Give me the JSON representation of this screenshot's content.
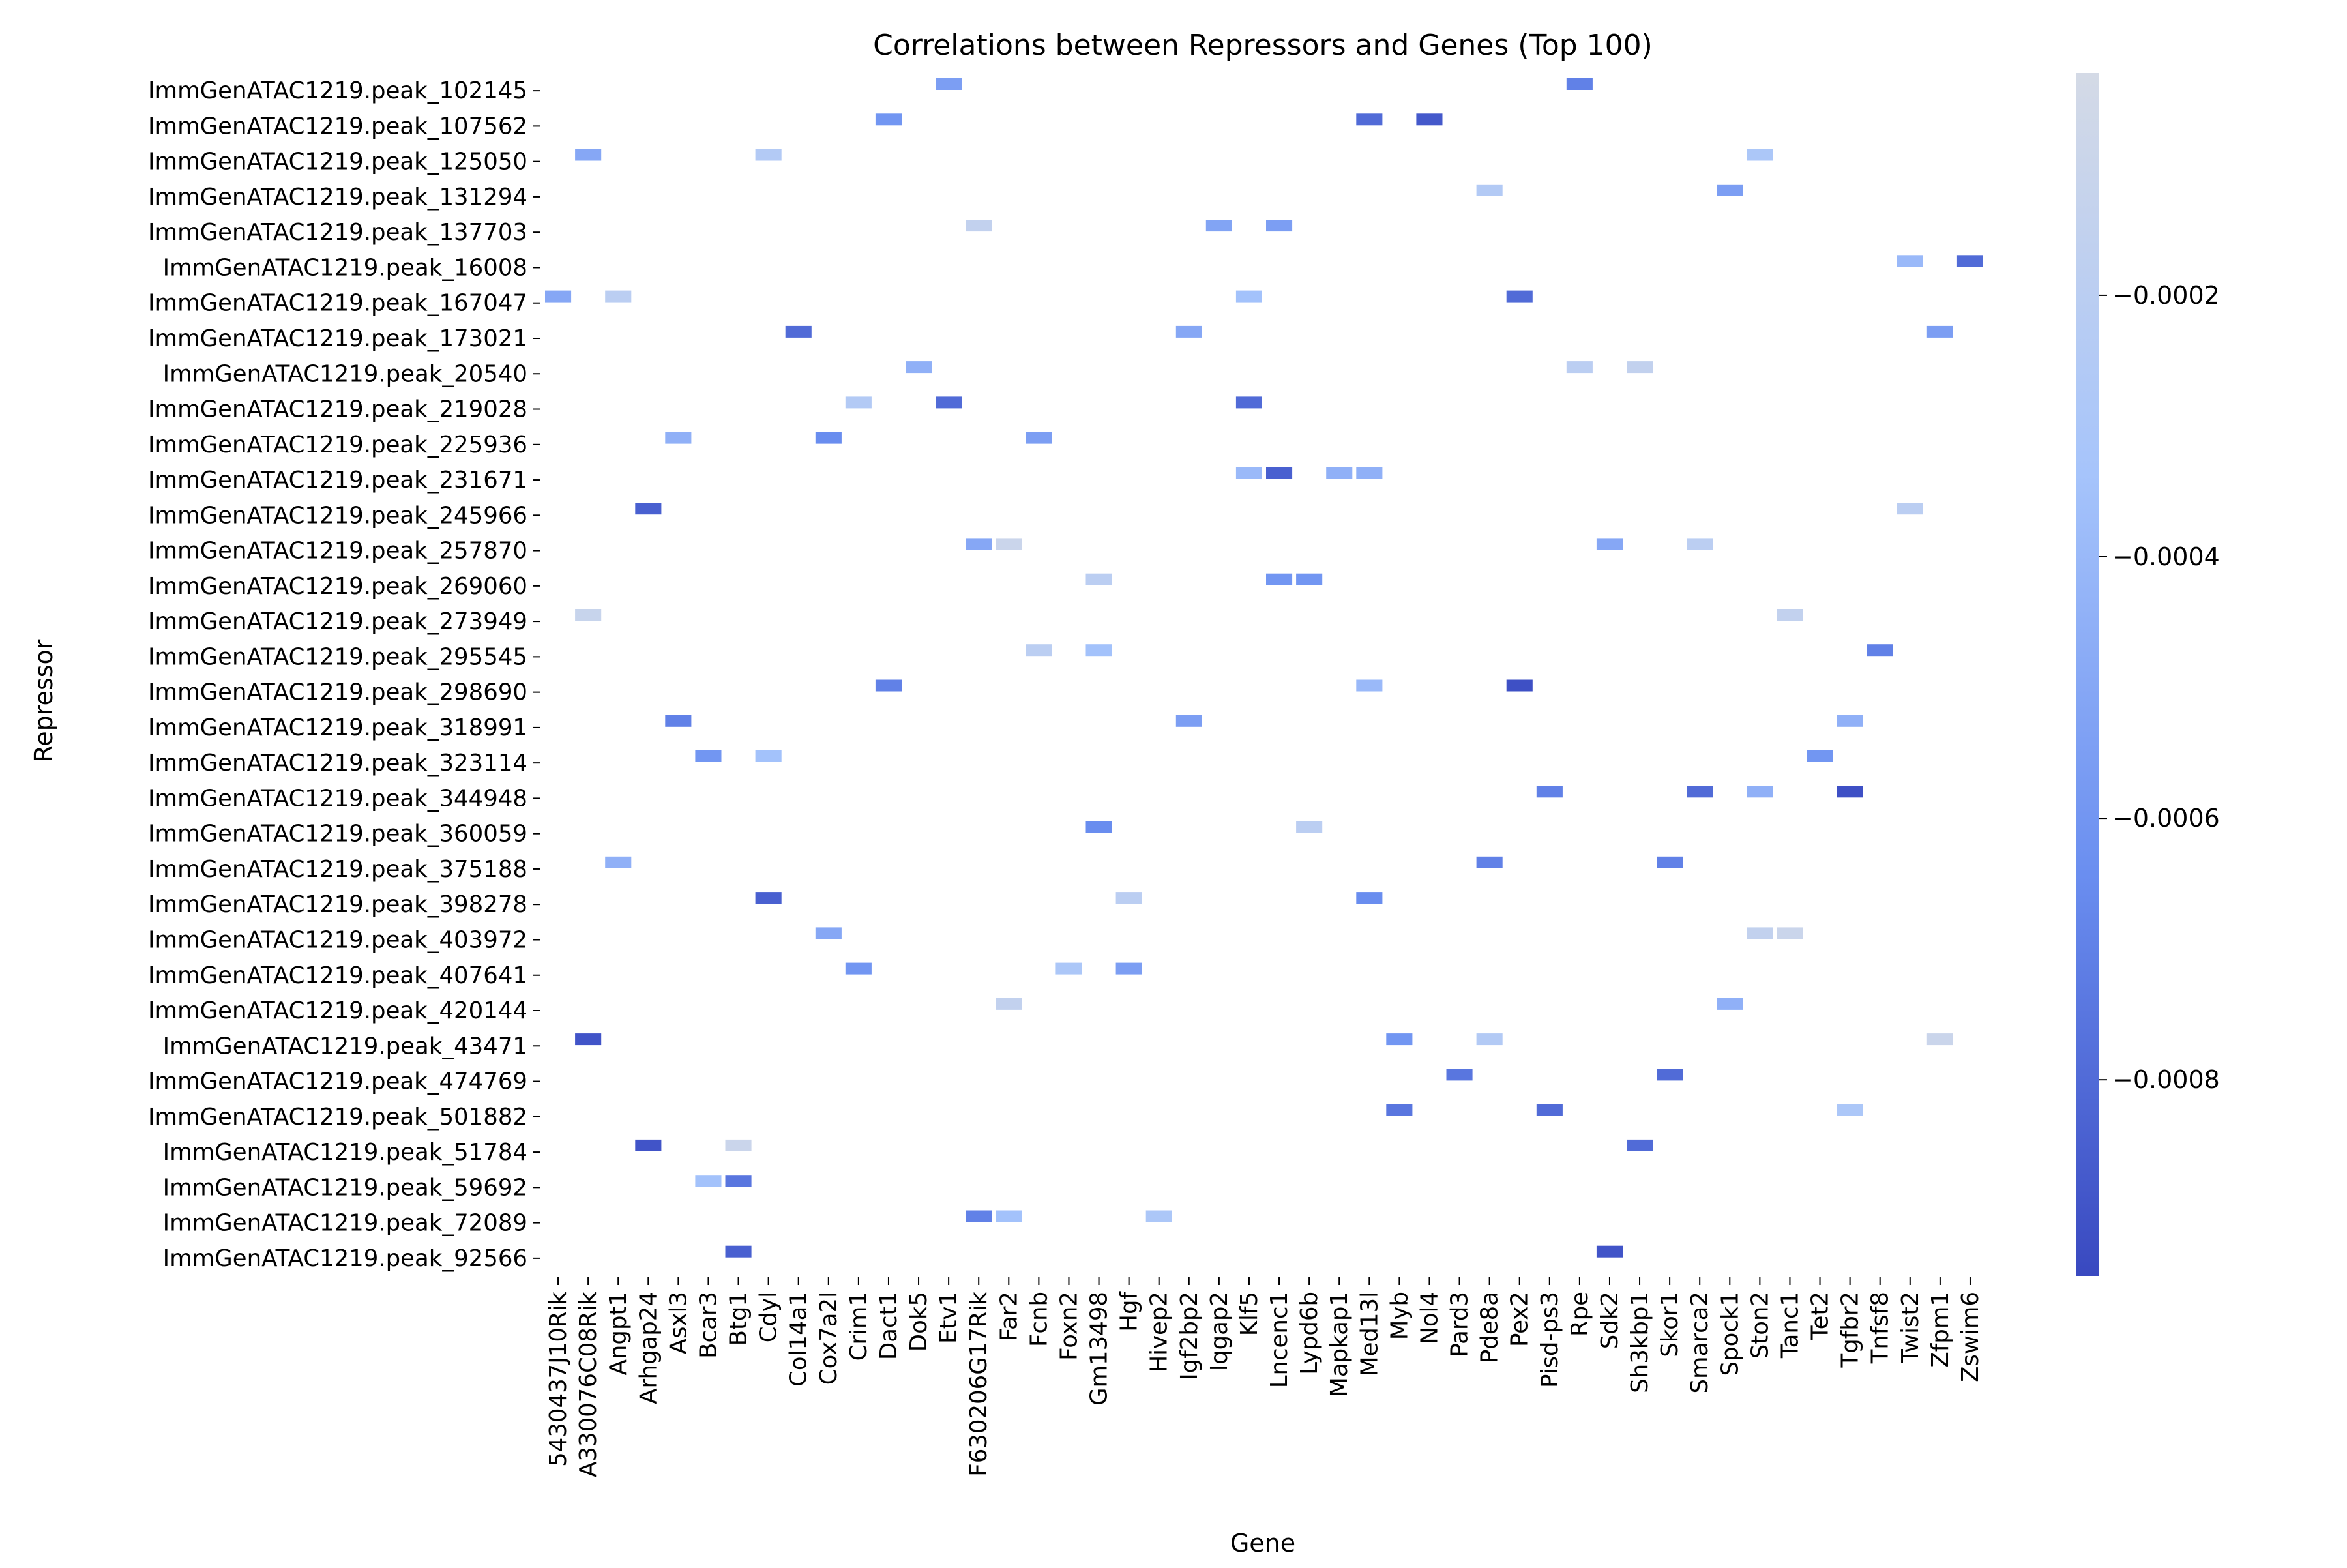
{
  "chart_data": {
    "type": "heatmap",
    "title": "Correlations between Repressors and Genes (Top 100)",
    "xlabel": "Gene",
    "ylabel": "Repressor",
    "x_categories": [
      "5430437J10Rik",
      "A330076C08Rik",
      "Angpt1",
      "Arhgap24",
      "Asxl3",
      "Bcar3",
      "Btg1",
      "Cdyl",
      "Col14a1",
      "Cox7a2l",
      "Crim1",
      "Dact1",
      "Dok5",
      "Etv1",
      "F630206G17Rik",
      "Far2",
      "Fcnb",
      "Foxn2",
      "Gm13498",
      "Hgf",
      "Hivep2",
      "Igf2bp2",
      "Iqgap2",
      "Klf5",
      "Lncenc1",
      "Lypd6b",
      "Mapkap1",
      "Med13l",
      "Myb",
      "Nol4",
      "Pard3",
      "Pde8a",
      "Pex2",
      "Pisd-ps3",
      "Rpe",
      "Sdk2",
      "Sh3kbp1",
      "Skor1",
      "Smarca2",
      "Spock1",
      "Ston2",
      "Tanc1",
      "Tet2",
      "Tgfbr2",
      "Tnfsf8",
      "Twist2",
      "Zfpm1",
      "Zswim6"
    ],
    "y_categories": [
      "ImmGenATAC1219.peak_102145",
      "ImmGenATAC1219.peak_107562",
      "ImmGenATAC1219.peak_125050",
      "ImmGenATAC1219.peak_131294",
      "ImmGenATAC1219.peak_137703",
      "ImmGenATAC1219.peak_16008",
      "ImmGenATAC1219.peak_167047",
      "ImmGenATAC1219.peak_173021",
      "ImmGenATAC1219.peak_20540",
      "ImmGenATAC1219.peak_219028",
      "ImmGenATAC1219.peak_225936",
      "ImmGenATAC1219.peak_231671",
      "ImmGenATAC1219.peak_245966",
      "ImmGenATAC1219.peak_257870",
      "ImmGenATAC1219.peak_269060",
      "ImmGenATAC1219.peak_273949",
      "ImmGenATAC1219.peak_295545",
      "ImmGenATAC1219.peak_298690",
      "ImmGenATAC1219.peak_318991",
      "ImmGenATAC1219.peak_323114",
      "ImmGenATAC1219.peak_344948",
      "ImmGenATAC1219.peak_360059",
      "ImmGenATAC1219.peak_375188",
      "ImmGenATAC1219.peak_398278",
      "ImmGenATAC1219.peak_403972",
      "ImmGenATAC1219.peak_407641",
      "ImmGenATAC1219.peak_420144",
      "ImmGenATAC1219.peak_43471",
      "ImmGenATAC1219.peak_474769",
      "ImmGenATAC1219.peak_501882",
      "ImmGenATAC1219.peak_51784",
      "ImmGenATAC1219.peak_59692",
      "ImmGenATAC1219.peak_72089",
      "ImmGenATAC1219.peak_92566"
    ],
    "cells": [
      {
        "gene": "Etv1",
        "repressor": "ImmGenATAC1219.peak_102145",
        "value": -0.00055
      },
      {
        "gene": "Rpe",
        "repressor": "ImmGenATAC1219.peak_102145",
        "value": -0.0007
      },
      {
        "gene": "Dact1",
        "repressor": "ImmGenATAC1219.peak_107562",
        "value": -0.0006
      },
      {
        "gene": "Med13l",
        "repressor": "ImmGenATAC1219.peak_107562",
        "value": -0.0008
      },
      {
        "gene": "Nol4",
        "repressor": "ImmGenATAC1219.peak_107562",
        "value": -0.00088
      },
      {
        "gene": "A330076C08Rik",
        "repressor": "ImmGenATAC1219.peak_125050",
        "value": -0.0005
      },
      {
        "gene": "Cdyl",
        "repressor": "ImmGenATAC1219.peak_125050",
        "value": -0.00025
      },
      {
        "gene": "Ston2",
        "repressor": "ImmGenATAC1219.peak_125050",
        "value": -0.0003
      },
      {
        "gene": "Pde8a",
        "repressor": "ImmGenATAC1219.peak_131294",
        "value": -0.00025
      },
      {
        "gene": "Spock1",
        "repressor": "ImmGenATAC1219.peak_131294",
        "value": -0.00055
      },
      {
        "gene": "F630206G17Rik",
        "repressor": "ImmGenATAC1219.peak_137703",
        "value": -0.00015
      },
      {
        "gene": "Iqgap2",
        "repressor": "ImmGenATAC1219.peak_137703",
        "value": -0.00052
      },
      {
        "gene": "Lncenc1",
        "repressor": "ImmGenATAC1219.peak_137703",
        "value": -0.00055
      },
      {
        "gene": "Zswim6",
        "repressor": "ImmGenATAC1219.peak_16008",
        "value": -0.0008
      },
      {
        "gene": "Twist2",
        "repressor": "ImmGenATAC1219.peak_16008",
        "value": -0.0004
      },
      {
        "gene": "5430437J10Rik",
        "repressor": "ImmGenATAC1219.peak_167047",
        "value": -0.0005
      },
      {
        "gene": "Klf5",
        "repressor": "ImmGenATAC1219.peak_167047",
        "value": -0.00035
      },
      {
        "gene": "Pex2",
        "repressor": "ImmGenATAC1219.peak_167047",
        "value": -0.0008
      },
      {
        "gene": "Angpt1",
        "repressor": "ImmGenATAC1219.peak_167047",
        "value": -0.0002
      },
      {
        "gene": "Col14a1",
        "repressor": "ImmGenATAC1219.peak_173021",
        "value": -0.0008
      },
      {
        "gene": "Zfpm1",
        "repressor": "ImmGenATAC1219.peak_173021",
        "value": -0.00055
      },
      {
        "gene": "Igf2bp2",
        "repressor": "ImmGenATAC1219.peak_173021",
        "value": -0.0005
      },
      {
        "gene": "Dok5",
        "repressor": "ImmGenATAC1219.peak_20540",
        "value": -0.00045
      },
      {
        "gene": "Rpe",
        "repressor": "ImmGenATAC1219.peak_20540",
        "value": -0.0002
      },
      {
        "gene": "Sh3kbp1",
        "repressor": "ImmGenATAC1219.peak_20540",
        "value": -0.00015
      },
      {
        "gene": "Etv1",
        "repressor": "ImmGenATAC1219.peak_219028",
        "value": -0.0008
      },
      {
        "gene": "Klf5",
        "repressor": "ImmGenATAC1219.peak_219028",
        "value": -0.0008
      },
      {
        "gene": "Crim1",
        "repressor": "ImmGenATAC1219.peak_219028",
        "value": -0.00025
      },
      {
        "gene": "Cox7a2l",
        "repressor": "ImmGenATAC1219.peak_225936",
        "value": -0.00065
      },
      {
        "gene": "Fcnb",
        "repressor": "ImmGenATAC1219.peak_225936",
        "value": -0.00055
      },
      {
        "gene": "Asxl3",
        "repressor": "ImmGenATAC1219.peak_225936",
        "value": -0.00045
      },
      {
        "gene": "Mapkap1",
        "repressor": "ImmGenATAC1219.peak_231671",
        "value": -0.00045
      },
      {
        "gene": "Med13l",
        "repressor": "ImmGenATAC1219.peak_231671",
        "value": -0.00045
      },
      {
        "gene": "Klf5",
        "repressor": "ImmGenATAC1219.peak_231671",
        "value": -0.0004
      },
      {
        "gene": "Lncenc1",
        "repressor": "ImmGenATAC1219.peak_231671",
        "value": -0.00085
      },
      {
        "gene": "Arhgap24",
        "repressor": "ImmGenATAC1219.peak_245966",
        "value": -0.00085
      },
      {
        "gene": "Twist2",
        "repressor": "ImmGenATAC1219.peak_245966",
        "value": -0.0002
      },
      {
        "gene": "F630206G17Rik",
        "repressor": "ImmGenATAC1219.peak_257870",
        "value": -0.0005
      },
      {
        "gene": "Far2",
        "repressor": "ImmGenATAC1219.peak_257870",
        "value": -0.0001
      },
      {
        "gene": "Sdk2",
        "repressor": "ImmGenATAC1219.peak_257870",
        "value": -0.0005
      },
      {
        "gene": "Smarca2",
        "repressor": "ImmGenATAC1219.peak_257870",
        "value": -0.0002
      },
      {
        "gene": "Lypd6b",
        "repressor": "ImmGenATAC1219.peak_269060",
        "value": -0.0006
      },
      {
        "gene": "Lncenc1",
        "repressor": "ImmGenATAC1219.peak_269060",
        "value": -0.0006
      },
      {
        "gene": "Gm13498",
        "repressor": "ImmGenATAC1219.peak_269060",
        "value": -0.0002
      },
      {
        "gene": "A330076C08Rik",
        "repressor": "ImmGenATAC1219.peak_273949",
        "value": -0.00012
      },
      {
        "gene": "Tanc1",
        "repressor": "ImmGenATAC1219.peak_273949",
        "value": -0.00015
      },
      {
        "gene": "Fcnb",
        "repressor": "ImmGenATAC1219.peak_295545",
        "value": -0.0002
      },
      {
        "gene": "Gm13498",
        "repressor": "ImmGenATAC1219.peak_295545",
        "value": -0.00035
      },
      {
        "gene": "Tnfsf8",
        "repressor": "ImmGenATAC1219.peak_295545",
        "value": -0.0007
      },
      {
        "gene": "Dact1",
        "repressor": "ImmGenATAC1219.peak_298690",
        "value": -0.0007
      },
      {
        "gene": "Med13l",
        "repressor": "ImmGenATAC1219.peak_298690",
        "value": -0.0004
      },
      {
        "gene": "Pex2",
        "repressor": "ImmGenATAC1219.peak_298690",
        "value": -0.00092
      },
      {
        "gene": "Asxl3",
        "repressor": "ImmGenATAC1219.peak_318991",
        "value": -0.0007
      },
      {
        "gene": "Igf2bp2",
        "repressor": "ImmGenATAC1219.peak_318991",
        "value": -0.00055
      },
      {
        "gene": "Tgfbr2",
        "repressor": "ImmGenATAC1219.peak_318991",
        "value": -0.00045
      },
      {
        "gene": "Cdyl",
        "repressor": "ImmGenATAC1219.peak_323114",
        "value": -0.00035
      },
      {
        "gene": "Bcar3",
        "repressor": "ImmGenATAC1219.peak_323114",
        "value": -0.0006
      },
      {
        "gene": "Tet2",
        "repressor": "ImmGenATAC1219.peak_323114",
        "value": -0.0006
      },
      {
        "gene": "Pisd-ps3",
        "repressor": "ImmGenATAC1219.peak_344948",
        "value": -0.0007
      },
      {
        "gene": "Smarca2",
        "repressor": "ImmGenATAC1219.peak_344948",
        "value": -0.0008
      },
      {
        "gene": "Tgfbr2",
        "repressor": "ImmGenATAC1219.peak_344948",
        "value": -0.00092
      },
      {
        "gene": "Ston2",
        "repressor": "ImmGenATAC1219.peak_344948",
        "value": -0.00045
      },
      {
        "gene": "Gm13498",
        "repressor": "ImmGenATAC1219.peak_360059",
        "value": -0.00065
      },
      {
        "gene": "Lypd6b",
        "repressor": "ImmGenATAC1219.peak_360059",
        "value": -0.0002
      },
      {
        "gene": "Pde8a",
        "repressor": "ImmGenATAC1219.peak_375188",
        "value": -0.0007
      },
      {
        "gene": "Skor1",
        "repressor": "ImmGenATAC1219.peak_375188",
        "value": -0.0007
      },
      {
        "gene": "Angpt1",
        "repressor": "ImmGenATAC1219.peak_375188",
        "value": -0.00045
      },
      {
        "gene": "Cdyl",
        "repressor": "ImmGenATAC1219.peak_398278",
        "value": -0.00085
      },
      {
        "gene": "Hgf",
        "repressor": "ImmGenATAC1219.peak_398278",
        "value": -0.0002
      },
      {
        "gene": "Med13l",
        "repressor": "ImmGenATAC1219.peak_398278",
        "value": -0.00065
      },
      {
        "gene": "Cox7a2l",
        "repressor": "ImmGenATAC1219.peak_403972",
        "value": -0.0005
      },
      {
        "gene": "Ston2",
        "repressor": "ImmGenATAC1219.peak_403972",
        "value": -0.00015
      },
      {
        "gene": "Tanc1",
        "repressor": "ImmGenATAC1219.peak_403972",
        "value": -0.0001
      },
      {
        "gene": "Crim1",
        "repressor": "ImmGenATAC1219.peak_407641",
        "value": -0.0006
      },
      {
        "gene": "Hgf",
        "repressor": "ImmGenATAC1219.peak_407641",
        "value": -0.00055
      },
      {
        "gene": "Foxn2",
        "repressor": "ImmGenATAC1219.peak_407641",
        "value": -0.0003
      },
      {
        "gene": "Far2",
        "repressor": "ImmGenATAC1219.peak_420144",
        "value": -0.00015
      },
      {
        "gene": "Spock1",
        "repressor": "ImmGenATAC1219.peak_420144",
        "value": -0.00045
      },
      {
        "gene": "A330076C08Rik",
        "repressor": "ImmGenATAC1219.peak_43471",
        "value": -0.0009
      },
      {
        "gene": "Myb",
        "repressor": "ImmGenATAC1219.peak_43471",
        "value": -0.0006
      },
      {
        "gene": "Pde8a",
        "repressor": "ImmGenATAC1219.peak_43471",
        "value": -0.00025
      },
      {
        "gene": "Zfpm1",
        "repressor": "ImmGenATAC1219.peak_43471",
        "value": -0.0001
      },
      {
        "gene": "Pard3",
        "repressor": "ImmGenATAC1219.peak_474769",
        "value": -0.00075
      },
      {
        "gene": "Skor1",
        "repressor": "ImmGenATAC1219.peak_474769",
        "value": -0.0008
      },
      {
        "gene": "Pisd-ps3",
        "repressor": "ImmGenATAC1219.peak_501882",
        "value": -0.0008
      },
      {
        "gene": "Myb",
        "repressor": "ImmGenATAC1219.peak_501882",
        "value": -0.00075
      },
      {
        "gene": "Tgfbr2",
        "repressor": "ImmGenATAC1219.peak_501882",
        "value": -0.0003
      },
      {
        "gene": "Arhgap24",
        "repressor": "ImmGenATAC1219.peak_51784",
        "value": -0.0009
      },
      {
        "gene": "Btg1",
        "repressor": "ImmGenATAC1219.peak_51784",
        "value": -0.0001
      },
      {
        "gene": "Sh3kbp1",
        "repressor": "ImmGenATAC1219.peak_51784",
        "value": -0.0008
      },
      {
        "gene": "Bcar3",
        "repressor": "ImmGenATAC1219.peak_59692",
        "value": -0.00035
      },
      {
        "gene": "Btg1",
        "repressor": "ImmGenATAC1219.peak_59692",
        "value": -0.00075
      },
      {
        "gene": "Hivep2",
        "repressor": "ImmGenATAC1219.peak_72089",
        "value": -0.0003
      },
      {
        "gene": "F630206G17Rik",
        "repressor": "ImmGenATAC1219.peak_72089",
        "value": -0.0007
      },
      {
        "gene": "Far2",
        "repressor": "ImmGenATAC1219.peak_72089",
        "value": -0.00035
      },
      {
        "gene": "Btg1",
        "repressor": "ImmGenATAC1219.peak_92566",
        "value": -0.00085
      },
      {
        "gene": "Sdk2",
        "repressor": "ImmGenATAC1219.peak_92566",
        "value": -0.0009
      }
    ],
    "colorbar": {
      "range": [
        -0.00095,
        -3e-05
      ],
      "ticks": [
        "−0.0002",
        "−0.0004",
        "−0.0006",
        "−0.0008"
      ],
      "tick_values": [
        -0.0002,
        -0.0004,
        -0.0006,
        -0.0008
      ],
      "colors": [
        "#3949c0",
        "#6a8ef0",
        "#a6c4fb",
        "#d4dae6"
      ]
    },
    "grid": false,
    "legend": "colorbar-right"
  }
}
